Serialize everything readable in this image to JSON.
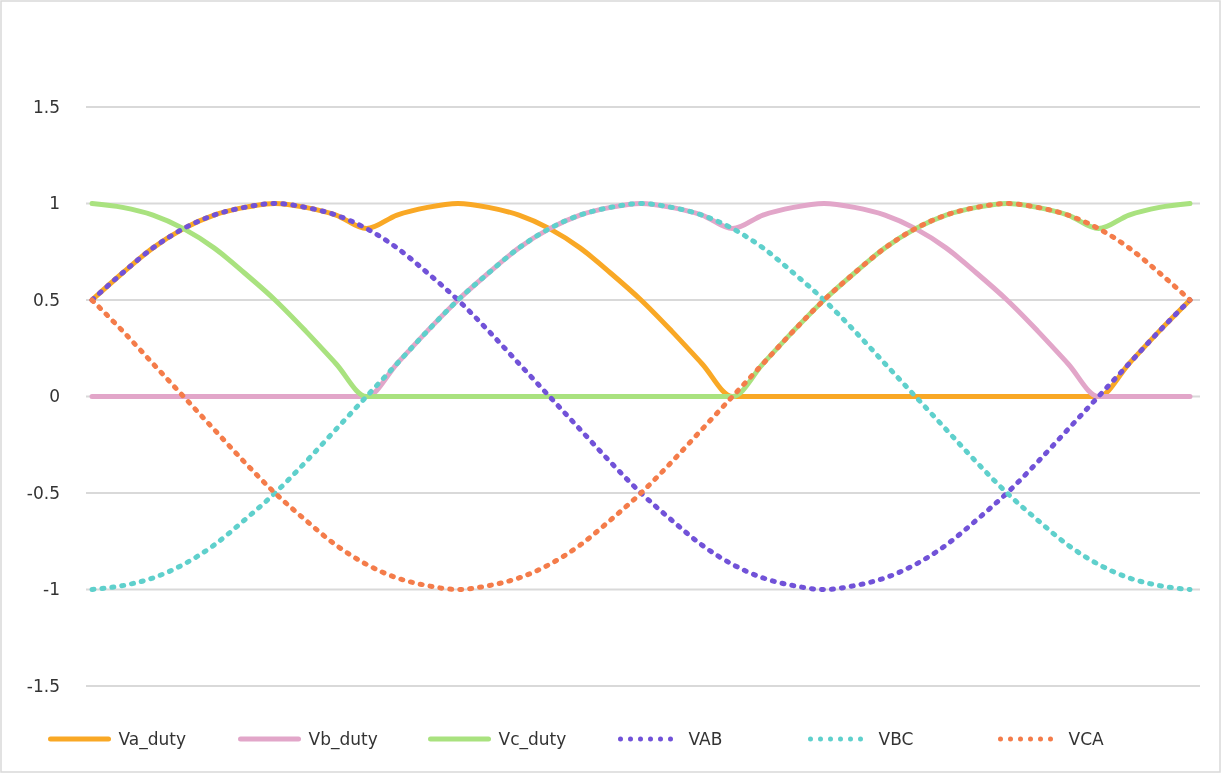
{
  "chart_data": {
    "type": "line",
    "categories": [
      null,
      null,
      null,
      null,
      null,
      null,
      null,
      null,
      null,
      null,
      null,
      null,
      null,
      null,
      null,
      null,
      null,
      null,
      null,
      null,
      null,
      null,
      null,
      null,
      null,
      null,
      null,
      null,
      null,
      null,
      null,
      null,
      null,
      null,
      null,
      null,
      null
    ],
    "ylim": [
      -1.5,
      1.5
    ],
    "yticks": [
      -1.5,
      -1,
      -0.5,
      0,
      0.5,
      1,
      1.5
    ],
    "grid": "y",
    "legend": "bottom",
    "tick_labels": "y",
    "marker": "none",
    "series": [
      {
        "name": "Va_duty",
        "color": "#f9a825",
        "line_style": "solid",
        "values": [
          0.5,
          0.64,
          0.77,
          0.87,
          0.94,
          0.98,
          1,
          0.98,
          0.94,
          0.87,
          0.94,
          0.98,
          1,
          0.98,
          0.94,
          0.87,
          0.77,
          0.64,
          0.5,
          0.34,
          0.17,
          0,
          0,
          0,
          0,
          0,
          0,
          0,
          0,
          0,
          0,
          0,
          0,
          0,
          0.17,
          0.34,
          0.5
        ]
      },
      {
        "name": "Vb_duty",
        "color": "#e2a6c9",
        "line_style": "solid",
        "values": [
          0,
          0,
          0,
          0,
          0,
          0,
          0,
          0,
          0,
          0,
          0.17,
          0.34,
          0.5,
          0.64,
          0.77,
          0.87,
          0.94,
          0.98,
          1,
          0.98,
          0.94,
          0.87,
          0.94,
          0.98,
          1,
          0.98,
          0.94,
          0.87,
          0.77,
          0.64,
          0.5,
          0.34,
          0.17,
          0,
          0,
          0,
          0
        ]
      },
      {
        "name": "Vc_duty",
        "color": "#a9e27f",
        "line_style": "solid",
        "values": [
          1,
          0.98,
          0.94,
          0.87,
          0.77,
          0.64,
          0.5,
          0.34,
          0.17,
          0,
          0,
          0,
          0,
          0,
          0,
          0,
          0,
          0,
          0,
          0,
          0,
          0,
          0.17,
          0.34,
          0.5,
          0.64,
          0.77,
          0.87,
          0.94,
          0.98,
          1,
          0.98,
          0.94,
          0.87,
          0.94,
          0.98,
          1
        ]
      },
      {
        "name": "VAB",
        "color": "#7152d8",
        "line_style": "dotted",
        "values": [
          0.5,
          0.64,
          0.77,
          0.87,
          0.94,
          0.98,
          1,
          0.98,
          0.94,
          0.87,
          0.77,
          0.64,
          0.5,
          0.34,
          0.17,
          0,
          -0.17,
          -0.34,
          -0.5,
          -0.64,
          -0.77,
          -0.87,
          -0.94,
          -0.98,
          -1,
          -0.98,
          -0.94,
          -0.87,
          -0.77,
          -0.64,
          -0.5,
          -0.34,
          -0.17,
          0,
          0.17,
          0.34,
          0.5
        ]
      },
      {
        "name": "VBC",
        "color": "#5fd0cc",
        "line_style": "dotted",
        "values": [
          -1,
          -0.98,
          -0.94,
          -0.87,
          -0.77,
          -0.64,
          -0.5,
          -0.34,
          -0.17,
          0,
          0.17,
          0.34,
          0.5,
          0.64,
          0.77,
          0.87,
          0.94,
          0.98,
          1,
          0.98,
          0.94,
          0.87,
          0.77,
          0.64,
          0.5,
          0.34,
          0.17,
          0,
          -0.17,
          -0.34,
          -0.5,
          -0.64,
          -0.77,
          -0.87,
          -0.94,
          -0.98,
          -1
        ]
      },
      {
        "name": "VCA",
        "color": "#f47c4a",
        "line_style": "dotted",
        "values": [
          0.5,
          0.34,
          0.17,
          0,
          -0.17,
          -0.34,
          -0.5,
          -0.64,
          -0.77,
          -0.87,
          -0.94,
          -0.98,
          -1,
          -0.98,
          -0.94,
          -0.87,
          -0.77,
          -0.64,
          -0.5,
          -0.34,
          -0.17,
          0,
          0.17,
          0.34,
          0.5,
          0.64,
          0.77,
          0.87,
          0.94,
          0.98,
          1,
          0.98,
          0.94,
          0.87,
          0.77,
          0.64,
          0.5
        ]
      }
    ]
  }
}
